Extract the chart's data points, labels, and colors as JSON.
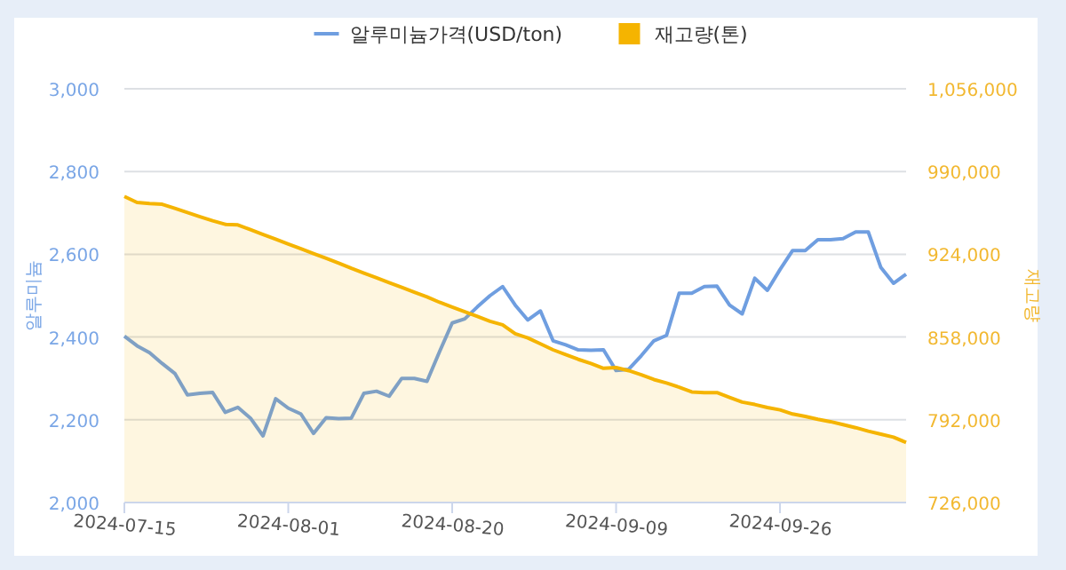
{
  "chart_data": {
    "type": "line",
    "ylabel": "알루미늄",
    "y2label": "재고량",
    "categories": [
      "2024-07-15",
      null,
      null,
      null,
      null,
      null,
      null,
      null,
      null,
      null,
      null,
      null,
      null,
      "2024-08-01",
      null,
      null,
      null,
      null,
      null,
      null,
      null,
      null,
      null,
      null,
      null,
      null,
      "2024-08-20",
      null,
      null,
      null,
      null,
      null,
      null,
      null,
      null,
      null,
      null,
      null,
      null,
      "2024-09-09",
      null,
      null,
      null,
      null,
      null,
      null,
      null,
      null,
      null,
      null,
      null,
      null,
      "2024-09-26",
      null,
      null,
      null,
      null,
      null,
      null,
      null,
      null,
      null,
      null
    ],
    "series": [
      {
        "name": "알루미늄가격(USD/ton)",
        "color": "#6f9ee0",
        "values": [
          2402,
          2379,
          2362,
          2336,
          2312,
          2260,
          2264,
          2266,
          2218,
          2230,
          2204,
          2161,
          2251,
          2228,
          2214,
          2167,
          2205,
          2203,
          2204,
          2264,
          2269,
          2257,
          2300,
          2300,
          2293,
          2365,
          2434,
          2444,
          2473,
          2500,
          2522,
          2477,
          2441,
          2463,
          2391,
          2381,
          2369,
          2368,
          2369,
          2319,
          2322,
          2355,
          2391,
          2404,
          2506,
          2506,
          2522,
          2523,
          2477,
          2456,
          2542,
          2513,
          2563,
          2609,
          2609,
          2635,
          2635,
          2638,
          2654,
          2654,
          2568,
          2530,
          2552
        ]
      },
      {
        "name": "재고량(톤)",
        "type": "area",
        "axis": "y2",
        "color": "#f5b400",
        "values": [
          970100,
          965400,
          964400,
          963900,
          960600,
          957300,
          954000,
          950700,
          947900,
          947400,
          943600,
          939800,
          936000,
          932200,
          928400,
          924600,
          920800,
          917000,
          912800,
          909000,
          905200,
          901400,
          897600,
          893800,
          890000,
          885700,
          881900,
          878200,
          874400,
          870600,
          867700,
          860600,
          857300,
          852600,
          847800,
          844000,
          840200,
          836900,
          833100,
          833600,
          831200,
          827900,
          824100,
          821300,
          818000,
          814200,
          813700,
          813700,
          809900,
          806100,
          804200,
          801800,
          799900,
          796600,
          794700,
          792400,
          790500,
          788100,
          785700,
          782900,
          780500,
          778100,
          773900
        ]
      }
    ],
    "ylim": [
      2000,
      3000
    ],
    "yticks": [
      {
        "value": 2000,
        "label": "2,000"
      },
      {
        "value": 2200,
        "label": "2,200"
      },
      {
        "value": 2400,
        "label": "2,400"
      },
      {
        "value": 2600,
        "label": "2,600"
      },
      {
        "value": 2800,
        "label": "2,800"
      },
      {
        "value": 3000,
        "label": "3,000"
      }
    ],
    "y2lim": [
      726000,
      1056000
    ],
    "y2ticks": [
      {
        "value": 726000,
        "label": "726,000"
      },
      {
        "value": 792000,
        "label": "792,000"
      },
      {
        "value": 858000,
        "label": "858,000"
      },
      {
        "value": 924000,
        "label": "924,000"
      },
      {
        "value": 990000,
        "label": "990,000"
      },
      {
        "value": 1056000,
        "label": "1,056,000"
      }
    ],
    "grid": "y",
    "legend": "top",
    "marker": "none",
    "line_style": "solid"
  }
}
